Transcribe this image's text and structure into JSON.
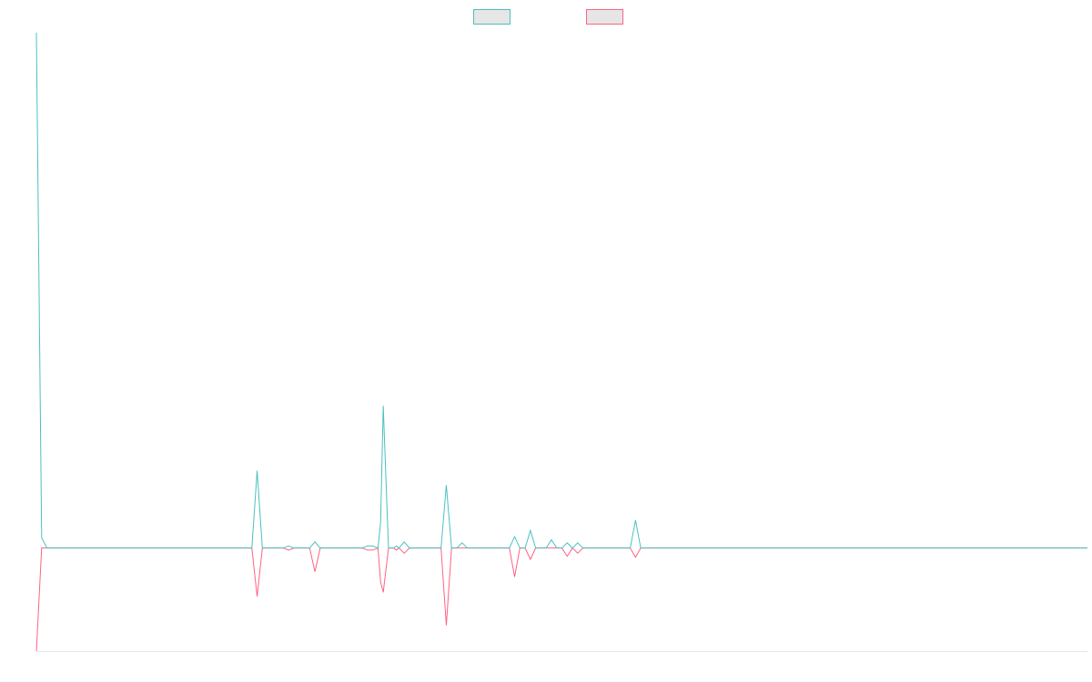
{
  "chart_data": {
    "type": "line",
    "title": "",
    "xlabel": "",
    "ylabel": "",
    "legend": {
      "placement": "top-center",
      "entries": [
        {
          "series_index": 0,
          "label": ""
        },
        {
          "series_index": 1,
          "label": ""
        }
      ]
    },
    "grid": false,
    "xlim": [
      0,
      200
    ],
    "ylim": [
      -1.0,
      5.0
    ],
    "baseline": 0,
    "series": [
      {
        "color": "#4bc0c0",
        "fill": "#e6e6e6",
        "points": [
          [
            0,
            5.0
          ],
          [
            1,
            0.1
          ],
          [
            2,
            0.0
          ],
          [
            41,
            0.0
          ],
          [
            42,
            0.75
          ],
          [
            43,
            0.0
          ],
          [
            47,
            0.0
          ],
          [
            48,
            0.02
          ],
          [
            49,
            0.0
          ],
          [
            52,
            0.0
          ],
          [
            53,
            0.06
          ],
          [
            54,
            0.0
          ],
          [
            62,
            0.0
          ],
          [
            63,
            0.02
          ],
          [
            64,
            0.02
          ],
          [
            65,
            0.0
          ],
          [
            65.5,
            0.25
          ],
          [
            66,
            1.38
          ],
          [
            67,
            0.0
          ],
          [
            68,
            0.0
          ],
          [
            68.5,
            0.02
          ],
          [
            69,
            0.0
          ],
          [
            70,
            0.06
          ],
          [
            71,
            0.0
          ],
          [
            77,
            0.0
          ],
          [
            78,
            0.61
          ],
          [
            79,
            0.0
          ],
          [
            80,
            0.0
          ],
          [
            81,
            0.05
          ],
          [
            82,
            0.0
          ],
          [
            90,
            0.0
          ],
          [
            91,
            0.11
          ],
          [
            92,
            0.0
          ],
          [
            93,
            0.0
          ],
          [
            94,
            0.17
          ],
          [
            95,
            0.0
          ],
          [
            97,
            0.0
          ],
          [
            98,
            0.08
          ],
          [
            99,
            0.0
          ],
          [
            100,
            0.0
          ],
          [
            101,
            0.05
          ],
          [
            102,
            0.0
          ],
          [
            103,
            0.05
          ],
          [
            104,
            0.0
          ],
          [
            113,
            0.0
          ],
          [
            114,
            0.27
          ],
          [
            115,
            0.0
          ],
          [
            200,
            0.0
          ]
        ]
      },
      {
        "color": "#ff6384",
        "fill": "#e6e6e6",
        "points": [
          [
            0,
            -1.0
          ],
          [
            1,
            0.0
          ],
          [
            41,
            0.0
          ],
          [
            42,
            -0.47
          ],
          [
            43,
            0.0
          ],
          [
            47,
            0.0
          ],
          [
            48,
            -0.02
          ],
          [
            49,
            0.0
          ],
          [
            52,
            0.0
          ],
          [
            53,
            -0.23
          ],
          [
            54,
            0.0
          ],
          [
            62,
            0.0
          ],
          [
            63,
            -0.02
          ],
          [
            64,
            -0.02
          ],
          [
            65,
            0.0
          ],
          [
            65.5,
            -0.33
          ],
          [
            66,
            -0.43
          ],
          [
            67,
            0.0
          ],
          [
            68,
            0.0
          ],
          [
            68.5,
            -0.02
          ],
          [
            69,
            0.0
          ],
          [
            70,
            -0.05
          ],
          [
            71,
            0.0
          ],
          [
            77,
            0.0
          ],
          [
            78,
            -0.75
          ],
          [
            79,
            0.0
          ],
          [
            90,
            0.0
          ],
          [
            91,
            -0.28
          ],
          [
            92,
            0.0
          ],
          [
            93,
            0.0
          ],
          [
            94,
            -0.11
          ],
          [
            95,
            0.0
          ],
          [
            100,
            0.0
          ],
          [
            101,
            -0.08
          ],
          [
            102,
            0.0
          ],
          [
            103,
            -0.05
          ],
          [
            104,
            0.0
          ],
          [
            113,
            0.0
          ],
          [
            114,
            -0.09
          ],
          [
            115,
            0.0
          ],
          [
            200,
            0.0
          ]
        ]
      }
    ]
  }
}
